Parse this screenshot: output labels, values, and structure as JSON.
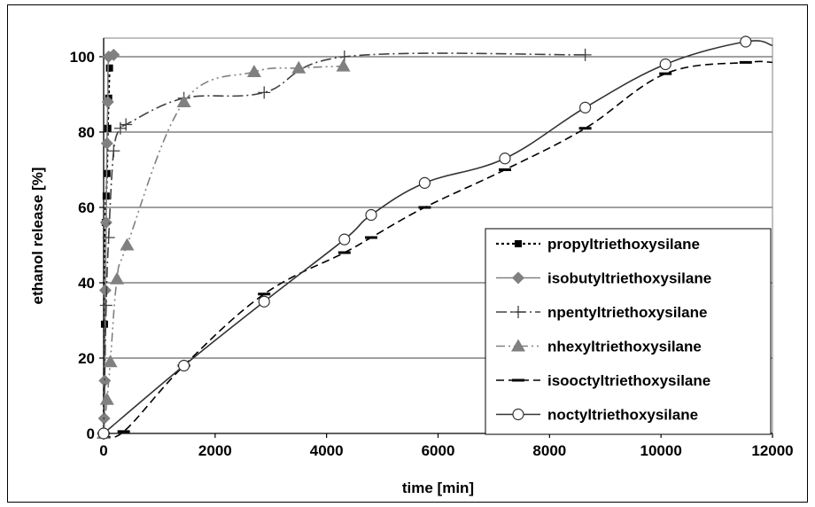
{
  "chart_data": {
    "type": "line",
    "title": "",
    "xlabel": "time [min]",
    "ylabel": "ethanol release  [%]",
    "xlim": [
      0,
      12000
    ],
    "ylim": [
      0,
      105
    ],
    "xticks": [
      0,
      2000,
      4000,
      6000,
      8000,
      10000,
      12000
    ],
    "yticks": [
      0,
      20,
      40,
      60,
      80,
      100
    ],
    "grid": "horizontal",
    "legend": "lower-right",
    "series": [
      {
        "name": "propyltriethoxysilane",
        "style": "dotted",
        "marker": "square",
        "color": "#000000",
        "x": [
          0,
          15,
          30,
          45,
          60,
          75,
          90,
          105
        ],
        "y": [
          0,
          29,
          56,
          63,
          69,
          81,
          89,
          97
        ]
      },
      {
        "name": "isobutyltriethoxysilane",
        "style": "solid",
        "marker": "diamond",
        "color": "#808080",
        "x": [
          0,
          10,
          20,
          30,
          45,
          60,
          75,
          90,
          180
        ],
        "y": [
          0,
          4,
          14,
          38,
          56,
          77,
          88,
          100,
          100.5
        ]
      },
      {
        "name": "npentyltriethoxysilane",
        "style": "dash-dot",
        "marker": "plus",
        "color": "#404040",
        "x": [
          0,
          45,
          90,
          180,
          300,
          400,
          1440,
          2880,
          4320,
          8640
        ],
        "y": [
          0,
          34,
          52,
          75,
          81,
          82,
          89,
          90.5,
          100,
          100.5
        ]
      },
      {
        "name": "nhexyltriethoxysilane",
        "style": "dash-dot-dot",
        "marker": "triangle",
        "color": "#808080",
        "x": [
          0,
          60,
          120,
          240,
          420,
          1440,
          2700,
          3500,
          4300
        ],
        "y": [
          0,
          9,
          19,
          41,
          50,
          88,
          96,
          97,
          97.5
        ]
      },
      {
        "name": "isooctyltriethoxysilane",
        "style": "dashed",
        "marker": "dash",
        "color": "#000000",
        "x": [
          0,
          360,
          1440,
          2880,
          4320,
          4800,
          5760,
          7200,
          8640,
          10080,
          11520,
          12000
        ],
        "y": [
          0,
          0.5,
          18,
          37,
          48,
          52,
          60,
          70,
          81,
          95.5,
          98.5,
          98.5
        ]
      },
      {
        "name": "noctyltriethoxysilane",
        "style": "solid",
        "marker": "circle",
        "color": "#333333",
        "x": [
          0,
          1440,
          2880,
          4320,
          4800,
          5760,
          7200,
          8640,
          10080,
          11520,
          12000
        ],
        "y": [
          0,
          18,
          35,
          51.5,
          58,
          66.5,
          73,
          86.5,
          98,
          104,
          103
        ]
      }
    ]
  }
}
